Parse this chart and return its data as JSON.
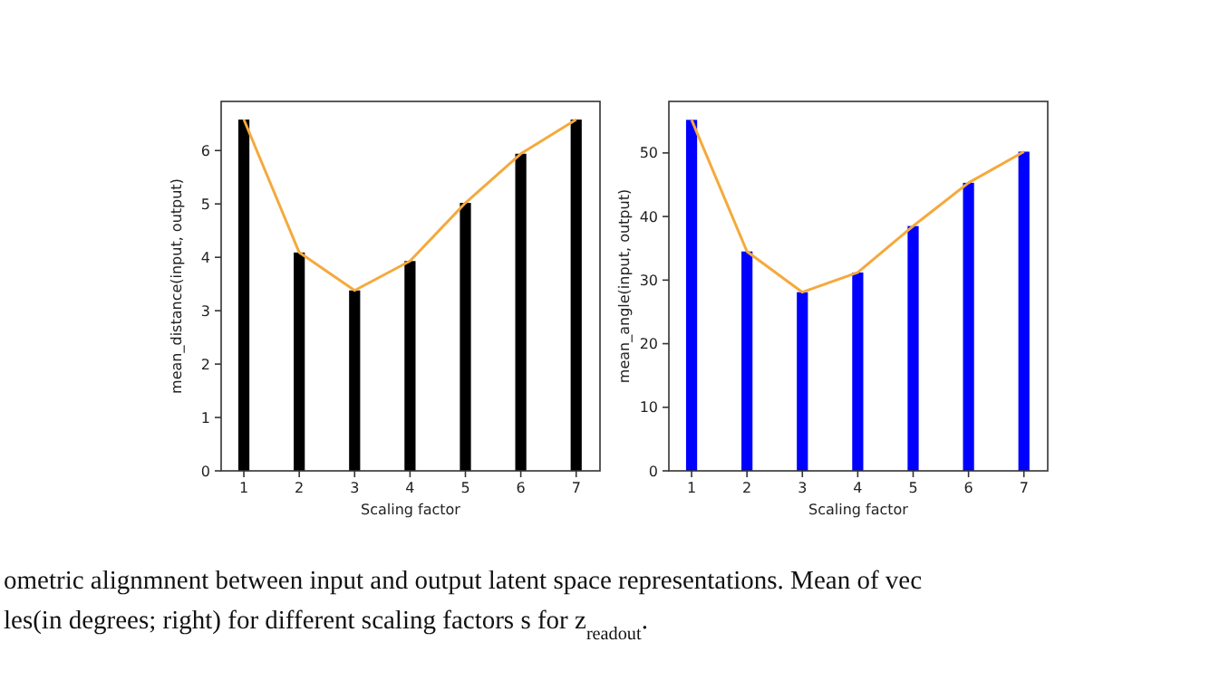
{
  "chart_data": [
    {
      "type": "bar",
      "categories": [
        "1",
        "2",
        "3",
        "4",
        "5",
        "6",
        "7"
      ],
      "xlabel": "Scaling factor",
      "ylabel": "mean_distance(input, output)",
      "ylim": [
        0,
        6.92
      ],
      "yticks": [
        0,
        1,
        2,
        3,
        4,
        5,
        6
      ],
      "series": [
        {
          "color": "#000000",
          "values": [
            6.58,
            4.09,
            3.38,
            3.93,
            5.02,
            5.94,
            6.58
          ]
        },
        {
          "type": "line",
          "color": "#f5a93c",
          "values": [
            6.58,
            4.09,
            3.38,
            3.93,
            5.02,
            5.94,
            6.58
          ]
        }
      ]
    },
    {
      "type": "bar",
      "categories": [
        "1",
        "2",
        "3",
        "4",
        "5",
        "6",
        "7"
      ],
      "xlabel": "Scaling factor",
      "ylabel": "mean_angle(input, output)",
      "ylim": [
        0,
        58.1
      ],
      "yticks": [
        0,
        10,
        20,
        30,
        40,
        50
      ],
      "series": [
        {
          "color": "#0000ff",
          "values": [
            55.2,
            34.5,
            28.1,
            31.2,
            38.5,
            45.3,
            50.2
          ]
        },
        {
          "type": "line",
          "color": "#f5a93c",
          "values": [
            55.2,
            34.5,
            28.1,
            31.2,
            38.5,
            45.3,
            50.2
          ]
        }
      ],
      "annotations": [
        "ometric alignmnent between input and output latent space representations. Mean of vec",
        "les(in degrees; right) for different scaling factors s for z$_{readout}$."
      ]
    }
  ]
}
